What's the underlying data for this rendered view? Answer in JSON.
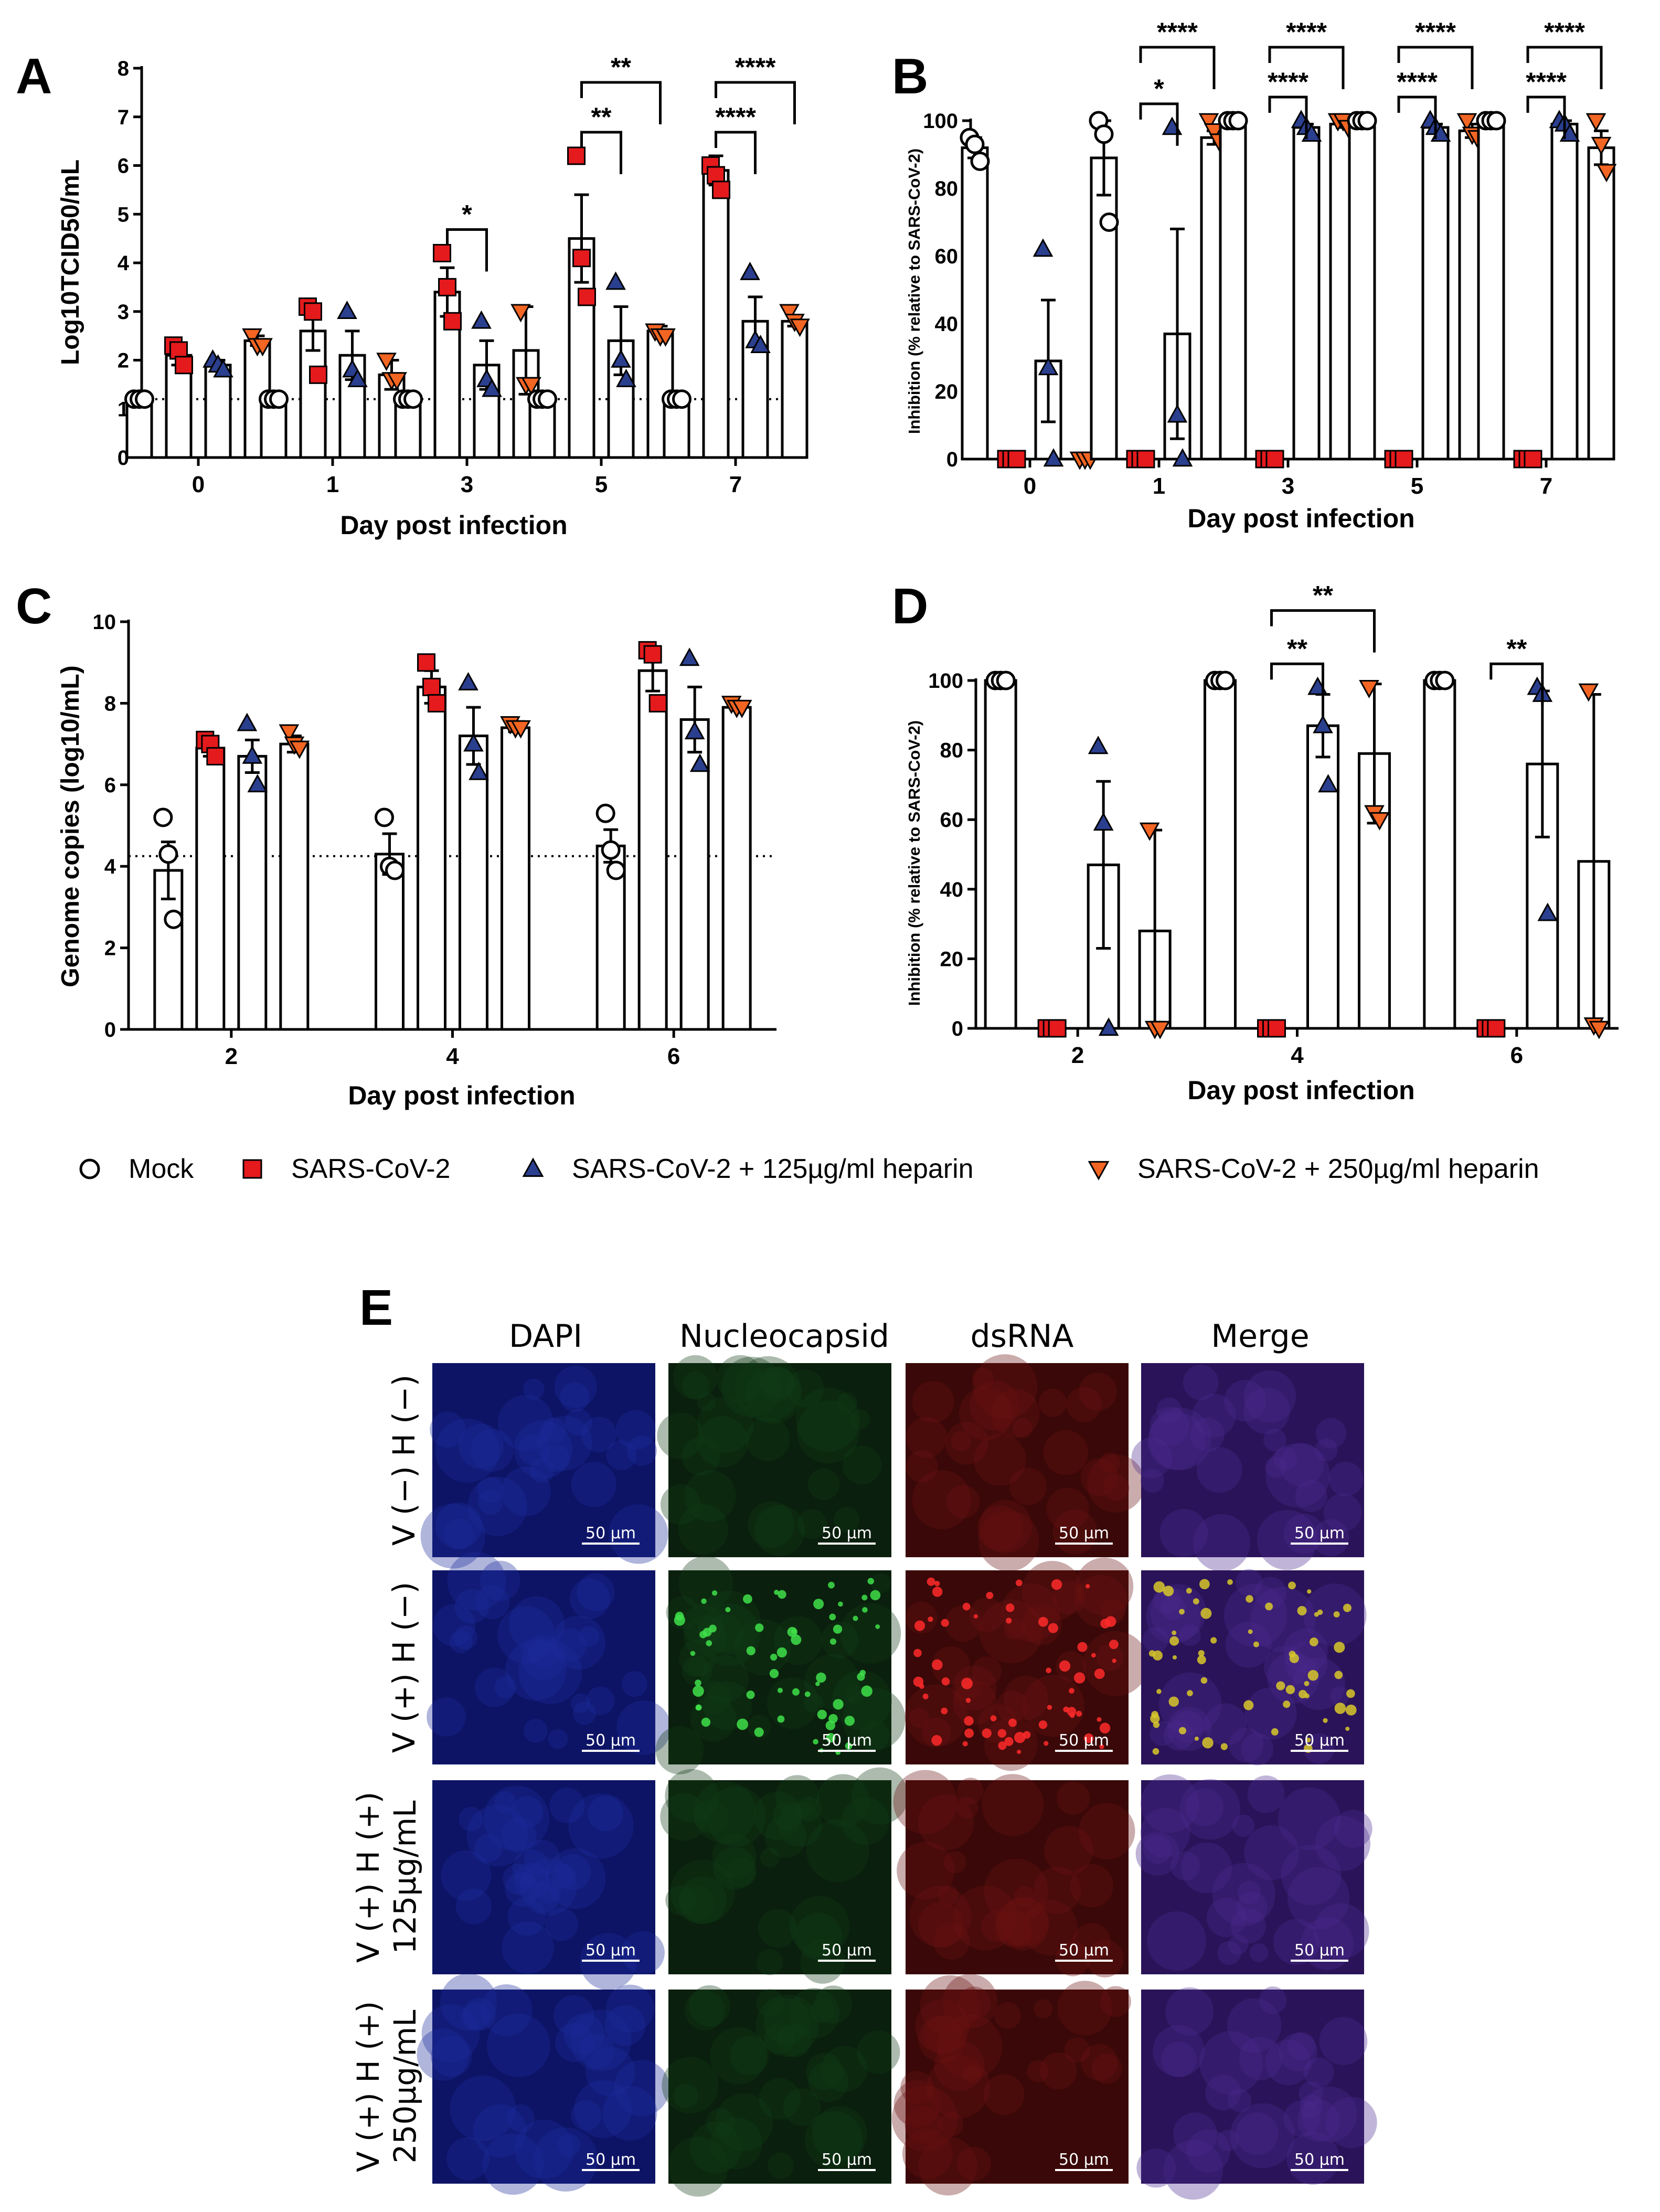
{
  "legend": [
    {
      "label": "Mock",
      "marker": "circle",
      "color": "#ffffff"
    },
    {
      "label": "SARS-CoV-2",
      "marker": "square",
      "color": "#e41a1c"
    },
    {
      "label": "SARS-CoV-2 + 125µg/ml heparin",
      "marker": "triangle-up",
      "color": "#2b3f8f"
    },
    {
      "label": "SARS-CoV-2 + 250µg/ml heparin",
      "marker": "triangle-down",
      "color": "#f26522"
    }
  ],
  "colors": {
    "mock": "#ffffff",
    "virus": "#e41a1c",
    "hep125": "#2b3f8f",
    "hep250": "#f26522",
    "axis": "#000000"
  },
  "chart_data": [
    {
      "panel": "A",
      "type": "bar",
      "xlabel": "Day post infection",
      "ylabel": "Log10TCID50/mL",
      "ylim": [
        0,
        8
      ],
      "yticks": [
        "0",
        "1",
        "2",
        "3",
        "4",
        "5",
        "6",
        "7",
        "8"
      ],
      "categories": [
        "0",
        "1",
        "3",
        "5",
        "7"
      ],
      "detection_limit": 1.2,
      "series": [
        {
          "name": "Mock",
          "values": [
            1.2,
            1.2,
            1.2,
            1.2,
            1.2
          ],
          "err": [
            0,
            0,
            0,
            0,
            0
          ]
        },
        {
          "name": "SARS-CoV-2",
          "values": [
            2.1,
            2.6,
            3.4,
            4.5,
            5.9
          ],
          "err": [
            0.2,
            0.4,
            0.5,
            0.9,
            0.3
          ]
        },
        {
          "name": "SARS-CoV-2 + 125µg/ml heparin",
          "values": [
            1.9,
            2.1,
            1.9,
            2.4,
            2.8
          ],
          "err": [
            0.1,
            0.5,
            0.5,
            0.7,
            0.5
          ]
        },
        {
          "name": "SARS-CoV-2 + 250µg/ml heparin",
          "values": [
            2.4,
            1.7,
            2.2,
            2.6,
            2.8
          ],
          "err": [
            0.1,
            0.3,
            0.9,
            0.1,
            0.1
          ]
        }
      ],
      "points": [
        [
          [
            1.2,
            1.2,
            1.2
          ],
          [
            2.3,
            2.2,
            1.9
          ],
          [
            2.0,
            1.9,
            1.8
          ],
          [
            2.5,
            2.3,
            2.3
          ]
        ],
        [
          [
            1.2,
            1.2,
            1.2
          ],
          [
            3.1,
            3.0,
            1.7
          ],
          [
            3.0,
            1.8,
            1.6
          ],
          [
            2.0,
            1.6,
            1.6
          ]
        ],
        [
          [
            1.2,
            1.2,
            1.2
          ],
          [
            4.2,
            3.5,
            2.8
          ],
          [
            2.8,
            1.6,
            1.4
          ],
          [
            3.0,
            1.5,
            1.5
          ]
        ],
        [
          [
            1.2,
            1.2,
            1.2
          ],
          [
            6.2,
            4.1,
            3.3
          ],
          [
            3.6,
            2.0,
            1.6
          ],
          [
            2.6,
            2.5,
            2.5
          ]
        ],
        [
          [
            1.2,
            1.2,
            1.2
          ],
          [
            6.0,
            5.8,
            5.5
          ],
          [
            3.8,
            2.4,
            2.3
          ],
          [
            3.0,
            2.8,
            2.7
          ]
        ]
      ],
      "annotations": [
        {
          "label": "*",
          "cat": 2,
          "from": 1,
          "to": 2,
          "level": 0
        },
        {
          "label": "**",
          "cat": 3,
          "from": 1,
          "to": 2,
          "level": 0
        },
        {
          "label": "**",
          "cat": 3,
          "from": 1,
          "to": 3,
          "level": 1
        },
        {
          "label": "****",
          "cat": 4,
          "from": 1,
          "to": 2,
          "level": 0
        },
        {
          "label": "****",
          "cat": 4,
          "from": 1,
          "to": 3,
          "level": 1
        }
      ]
    },
    {
      "panel": "B",
      "type": "bar",
      "xlabel": "Day post infection",
      "ylabel": "Inhibition (% relative to SARS-CoV-2)",
      "ylim": [
        0,
        100
      ],
      "yticks": [
        "0",
        "20",
        "40",
        "60",
        "80",
        "100"
      ],
      "categories": [
        "0",
        "1",
        "3",
        "5",
        "7"
      ],
      "series": [
        {
          "name": "Mock",
          "values": [
            92,
            89,
            100,
            100,
            100
          ],
          "err": [
            3,
            11,
            0,
            0,
            0
          ]
        },
        {
          "name": "SARS-CoV-2",
          "values": [
            0,
            0,
            0,
            0,
            0
          ],
          "err": [
            0,
            0,
            0,
            0,
            0
          ]
        },
        {
          "name": "SARS-CoV-2 + 125µg/ml heparin",
          "values": [
            29,
            37,
            98,
            98,
            99
          ],
          "err": [
            18,
            31,
            1,
            1,
            1
          ]
        },
        {
          "name": "SARS-CoV-2 + 250µg/ml heparin",
          "values": [
            0,
            95,
            99,
            97,
            92
          ],
          "err": [
            0,
            2,
            1,
            2,
            5
          ]
        }
      ],
      "points": [
        [
          [
            95,
            93,
            88
          ],
          [
            0,
            0,
            0
          ],
          [
            62,
            27,
            0
          ],
          [
            0,
            0,
            0
          ]
        ],
        [
          [
            100,
            96,
            70
          ],
          [
            0,
            0,
            0
          ],
          [
            98,
            13,
            0
          ],
          [
            100,
            97,
            94
          ]
        ],
        [
          [
            100,
            100,
            100
          ],
          [
            0,
            0,
            0
          ],
          [
            100,
            98,
            96
          ],
          [
            100,
            100,
            98
          ]
        ],
        [
          [
            100,
            100,
            100
          ],
          [
            0,
            0,
            0
          ],
          [
            100,
            98,
            96
          ],
          [
            100,
            96,
            95
          ]
        ],
        [
          [
            100,
            100,
            100
          ],
          [
            0,
            0,
            0
          ],
          [
            100,
            99,
            96
          ],
          [
            100,
            93,
            85
          ]
        ]
      ],
      "annotations": [
        {
          "label": "*",
          "cat": 1,
          "from": 1,
          "to": 2,
          "level": 0
        },
        {
          "label": "****",
          "cat": 1,
          "from": 1,
          "to": 3,
          "level": 1
        },
        {
          "label": "****",
          "cat": 2,
          "from": 1,
          "to": 2,
          "level": 0
        },
        {
          "label": "****",
          "cat": 2,
          "from": 1,
          "to": 3,
          "level": 1
        },
        {
          "label": "****",
          "cat": 3,
          "from": 1,
          "to": 2,
          "level": 0
        },
        {
          "label": "****",
          "cat": 3,
          "from": 1,
          "to": 3,
          "level": 1
        },
        {
          "label": "****",
          "cat": 4,
          "from": 1,
          "to": 2,
          "level": 0
        },
        {
          "label": "****",
          "cat": 4,
          "from": 1,
          "to": 3,
          "level": 1
        }
      ]
    },
    {
      "panel": "C",
      "type": "bar",
      "xlabel": "Day post infection",
      "ylabel": "Genome copies (log10/mL)",
      "ylim": [
        0,
        10
      ],
      "yticks": [
        "0",
        "2",
        "4",
        "6",
        "8",
        "10"
      ],
      "categories": [
        "2",
        "4",
        "6"
      ],
      "detection_limit": 4.25,
      "series": [
        {
          "name": "Mock",
          "values": [
            3.9,
            4.3,
            4.5
          ],
          "err": [
            0.7,
            0.5,
            0.4
          ]
        },
        {
          "name": "SARS-CoV-2",
          "values": [
            6.9,
            8.4,
            8.8
          ],
          "err": [
            0.2,
            0.4,
            0.5
          ]
        },
        {
          "name": "SARS-CoV-2 + 125µg/ml heparin",
          "values": [
            6.7,
            7.2,
            7.6
          ],
          "err": [
            0.4,
            0.7,
            0.8
          ]
        },
        {
          "name": "SARS-CoV-2 + 250µg/ml heparin",
          "values": [
            7.0,
            7.4,
            7.9
          ],
          "err": [
            0.2,
            0.1,
            0.05
          ]
        }
      ],
      "points": [
        [
          [
            5.2,
            4.3,
            2.7
          ],
          [
            7.1,
            7.0,
            6.7
          ],
          [
            7.5,
            6.7,
            6.0
          ],
          [
            7.3,
            7.0,
            6.9
          ]
        ],
        [
          [
            5.2,
            4.0,
            3.9
          ],
          [
            9.0,
            8.4,
            8.0
          ],
          [
            8.5,
            7.0,
            6.3
          ],
          [
            7.5,
            7.4,
            7.4
          ]
        ],
        [
          [
            5.3,
            4.4,
            3.9
          ],
          [
            9.3,
            9.2,
            8.0
          ],
          [
            9.1,
            7.3,
            6.5
          ],
          [
            8.0,
            7.9,
            7.9
          ]
        ]
      ],
      "annotations": []
    },
    {
      "panel": "D",
      "type": "bar",
      "xlabel": "Day post infection",
      "ylabel": "Inhibition (% relative to SARS-CoV-2)",
      "ylim": [
        0,
        100
      ],
      "yticks": [
        "0",
        "20",
        "40",
        "60",
        "80",
        "100"
      ],
      "categories": [
        "2",
        "4",
        "6"
      ],
      "series": [
        {
          "name": "Mock",
          "values": [
            100,
            100,
            100
          ],
          "err": [
            0,
            0,
            0
          ]
        },
        {
          "name": "SARS-CoV-2",
          "values": [
            0,
            0,
            0
          ],
          "err": [
            0,
            0,
            0
          ]
        },
        {
          "name": "SARS-CoV-2 + 125µg/ml heparin",
          "values": [
            47,
            87,
            76
          ],
          "err": [
            24,
            9,
            21
          ]
        },
        {
          "name": "SARS-CoV-2 + 250µg/ml heparin",
          "values": [
            28,
            79,
            48
          ],
          "err": [
            29,
            20,
            48
          ]
        }
      ],
      "points": [
        [
          [
            100,
            100,
            100
          ],
          [
            0,
            0,
            0
          ],
          [
            81,
            59,
            0
          ],
          [
            57,
            0,
            0
          ]
        ],
        [
          [
            100,
            100,
            100
          ],
          [
            0,
            0,
            0
          ],
          [
            98,
            87,
            70
          ],
          [
            98,
            62,
            60
          ]
        ],
        [
          [
            100,
            100,
            100
          ],
          [
            0,
            0,
            0
          ],
          [
            98,
            96,
            33
          ],
          [
            97,
            1,
            0
          ]
        ]
      ],
      "annotations": [
        {
          "label": "**",
          "cat": 1,
          "from": 1,
          "to": 2,
          "level": 0
        },
        {
          "label": "**",
          "cat": 1,
          "from": 1,
          "to": 3,
          "level": 1
        },
        {
          "label": "**",
          "cat": 2,
          "from": 1,
          "to": 2,
          "level": 0
        }
      ]
    }
  ],
  "panel_e": {
    "letter": "E",
    "columns": [
      "DAPI",
      "Nucleocapsid",
      "dsRNA",
      "Merge"
    ],
    "rows": [
      {
        "label": "V (−) H (−)",
        "sublabel": ""
      },
      {
        "label": "V (+) H (−)",
        "sublabel": ""
      },
      {
        "label": "V (+) H (+)",
        "sublabel": "125µg/mL"
      },
      {
        "label": "V (+) H (+)",
        "sublabel": "250µg/mL"
      }
    ],
    "scale_bar": "50 µm",
    "channel_colors": {
      "DAPI": "#0d1466",
      "Nucleocapsid": "#0a1f0d",
      "dsRNA": "#3a0808",
      "Merge": "#2a1358"
    }
  }
}
